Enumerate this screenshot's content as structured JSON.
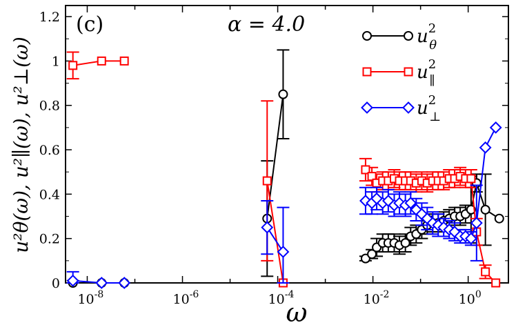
{
  "chart_data": {
    "type": "line",
    "panel_label": "(c)",
    "annotation": "α = 4.0",
    "xlabel": "ω",
    "ylabel": "u²θ(ω), u²∥(ω), u²⊥(ω)",
    "x_scale": "log",
    "xlim": [
      3.5e-09,
      7
    ],
    "ylim": [
      0,
      1.25
    ],
    "x_ticks": [
      {
        "value": 1e-08,
        "base": "10",
        "exp": "-8"
      },
      {
        "value": 1e-06,
        "base": "10",
        "exp": "-6"
      },
      {
        "value": 0.0001,
        "base": "10",
        "exp": "-4"
      },
      {
        "value": 0.01,
        "base": "10",
        "exp": "-2"
      },
      {
        "value": 1,
        "base": "10",
        "exp": "0"
      }
    ],
    "y_ticks": [
      {
        "value": 0,
        "label": "0"
      },
      {
        "value": 0.2,
        "label": "0.2"
      },
      {
        "value": 0.4,
        "label": "0.4"
      },
      {
        "value": 0.6,
        "label": "0.6"
      },
      {
        "value": 0.8,
        "label": "0.8"
      },
      {
        "value": 1.0,
        "label": "1"
      },
      {
        "value": 1.2,
        "label": "1.2"
      }
    ],
    "series": [
      {
        "name": "u_theta",
        "legend_base": "u",
        "legend_sup": "2",
        "legend_sub": "θ",
        "color": "#000000",
        "marker": "circle",
        "points": [
          {
            "x": 5e-09,
            "y": 0.0,
            "err": 0.01
          },
          {
            "x": 2e-08,
            "y": 0.0,
            "err": 0.0
          },
          {
            "x": 6e-08,
            "y": 0.0,
            "err": 0.0
          },
          {
            "x": 6e-05,
            "y": 0.29,
            "err": 0.26
          },
          {
            "x": 0.00013,
            "y": 0.85,
            "err": 0.2
          },
          {
            "x": 0.007,
            "y": 0.11,
            "err": 0.01
          },
          {
            "x": 0.0095,
            "y": 0.13,
            "err": 0.02
          },
          {
            "x": 0.012,
            "y": 0.16,
            "err": 0.04
          },
          {
            "x": 0.016,
            "y": 0.18,
            "err": 0.04
          },
          {
            "x": 0.021,
            "y": 0.18,
            "err": 0.04
          },
          {
            "x": 0.028,
            "y": 0.18,
            "err": 0.04
          },
          {
            "x": 0.036,
            "y": 0.17,
            "err": 0.04
          },
          {
            "x": 0.048,
            "y": 0.18,
            "err": 0.04
          },
          {
            "x": 0.062,
            "y": 0.21,
            "err": 0.04
          },
          {
            "x": 0.081,
            "y": 0.22,
            "err": 0.04
          },
          {
            "x": 0.106,
            "y": 0.24,
            "err": 0.04
          },
          {
            "x": 0.138,
            "y": 0.26,
            "err": 0.04
          },
          {
            "x": 0.18,
            "y": 0.27,
            "err": 0.04
          },
          {
            "x": 0.235,
            "y": 0.27,
            "err": 0.04
          },
          {
            "x": 0.306,
            "y": 0.28,
            "err": 0.04
          },
          {
            "x": 0.4,
            "y": 0.29,
            "err": 0.04
          },
          {
            "x": 0.52,
            "y": 0.3,
            "err": 0.04
          },
          {
            "x": 0.68,
            "y": 0.3,
            "err": 0.04
          },
          {
            "x": 0.88,
            "y": 0.31,
            "err": 0.04
          },
          {
            "x": 1.15,
            "y": 0.33,
            "err": 0.15
          },
          {
            "x": 1.5,
            "y": 0.45,
            "err": 0.04
          },
          {
            "x": 2.3,
            "y": 0.33,
            "err": 0.16
          },
          {
            "x": 4.5,
            "y": 0.29,
            "err": 0.0
          }
        ]
      },
      {
        "name": "u_parallel",
        "legend_base": "u",
        "legend_sup": "2",
        "legend_sub": "∥",
        "color": "#ff0000",
        "marker": "square",
        "points": [
          {
            "x": 5e-09,
            "y": 0.98,
            "err": 0.06
          },
          {
            "x": 2e-08,
            "y": 1.0,
            "err": 0.0
          },
          {
            "x": 6e-08,
            "y": 1.0,
            "err": 0.0
          },
          {
            "x": 6e-05,
            "y": 0.46,
            "err": 0.36
          },
          {
            "x": 0.00013,
            "y": 0.0,
            "err": 0.0
          },
          {
            "x": 0.007,
            "y": 0.51,
            "err": 0.05
          },
          {
            "x": 0.0095,
            "y": 0.48,
            "err": 0.04
          },
          {
            "x": 0.012,
            "y": 0.45,
            "err": 0.04
          },
          {
            "x": 0.016,
            "y": 0.46,
            "err": 0.04
          },
          {
            "x": 0.021,
            "y": 0.46,
            "err": 0.04
          },
          {
            "x": 0.028,
            "y": 0.47,
            "err": 0.04
          },
          {
            "x": 0.036,
            "y": 0.46,
            "err": 0.04
          },
          {
            "x": 0.048,
            "y": 0.46,
            "err": 0.04
          },
          {
            "x": 0.062,
            "y": 0.46,
            "err": 0.04
          },
          {
            "x": 0.081,
            "y": 0.45,
            "err": 0.04
          },
          {
            "x": 0.106,
            "y": 0.46,
            "err": 0.04
          },
          {
            "x": 0.138,
            "y": 0.45,
            "err": 0.04
          },
          {
            "x": 0.18,
            "y": 0.46,
            "err": 0.04
          },
          {
            "x": 0.235,
            "y": 0.46,
            "err": 0.04
          },
          {
            "x": 0.306,
            "y": 0.46,
            "err": 0.04
          },
          {
            "x": 0.4,
            "y": 0.47,
            "err": 0.04
          },
          {
            "x": 0.52,
            "y": 0.47,
            "err": 0.04
          },
          {
            "x": 0.68,
            "y": 0.48,
            "err": 0.04
          },
          {
            "x": 0.88,
            "y": 0.47,
            "err": 0.04
          },
          {
            "x": 1.15,
            "y": 0.47,
            "err": 0.04
          },
          {
            "x": 1.5,
            "y": 0.23,
            "err": 0.06
          },
          {
            "x": 2.3,
            "y": 0.05,
            "err": 0.03
          },
          {
            "x": 3.8,
            "y": 0.0,
            "err": 0.0
          }
        ]
      },
      {
        "name": "u_perp",
        "legend_base": "u",
        "legend_sup": "2",
        "legend_sub": "⊥",
        "color": "#0000ff",
        "marker": "diamond",
        "points": [
          {
            "x": 5e-09,
            "y": 0.01,
            "err": 0.04
          },
          {
            "x": 2e-08,
            "y": 0.0,
            "err": 0.0
          },
          {
            "x": 6e-08,
            "y": 0.0,
            "err": 0.0
          },
          {
            "x": 6e-05,
            "y": 0.25,
            "err": 0.12
          },
          {
            "x": 0.00013,
            "y": 0.14,
            "err": 0.2
          },
          {
            "x": 0.007,
            "y": 0.37,
            "err": 0.06
          },
          {
            "x": 0.0095,
            "y": 0.36,
            "err": 0.05
          },
          {
            "x": 0.012,
            "y": 0.38,
            "err": 0.05
          },
          {
            "x": 0.016,
            "y": 0.36,
            "err": 0.05
          },
          {
            "x": 0.021,
            "y": 0.37,
            "err": 0.05
          },
          {
            "x": 0.028,
            "y": 0.35,
            "err": 0.05
          },
          {
            "x": 0.036,
            "y": 0.36,
            "err": 0.05
          },
          {
            "x": 0.048,
            "y": 0.35,
            "err": 0.05
          },
          {
            "x": 0.062,
            "y": 0.36,
            "err": 0.05
          },
          {
            "x": 0.081,
            "y": 0.33,
            "err": 0.05
          },
          {
            "x": 0.106,
            "y": 0.31,
            "err": 0.05
          },
          {
            "x": 0.138,
            "y": 0.29,
            "err": 0.05
          },
          {
            "x": 0.18,
            "y": 0.27,
            "err": 0.05
          },
          {
            "x": 0.235,
            "y": 0.26,
            "err": 0.05
          },
          {
            "x": 0.306,
            "y": 0.25,
            "err": 0.04
          },
          {
            "x": 0.4,
            "y": 0.24,
            "err": 0.04
          },
          {
            "x": 0.52,
            "y": 0.23,
            "err": 0.04
          },
          {
            "x": 0.68,
            "y": 0.21,
            "err": 0.03
          },
          {
            "x": 0.88,
            "y": 0.21,
            "err": 0.03
          },
          {
            "x": 1.15,
            "y": 0.2,
            "err": 0.03
          },
          {
            "x": 1.5,
            "y": 0.27,
            "err": 0.17
          },
          {
            "x": 2.3,
            "y": 0.61,
            "err": 0.0
          },
          {
            "x": 3.8,
            "y": 0.7,
            "err": 0.0
          }
        ]
      }
    ]
  }
}
